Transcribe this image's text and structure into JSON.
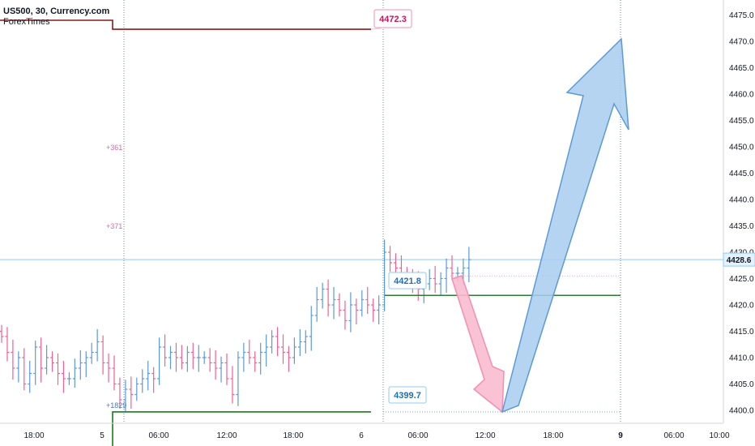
{
  "header": {
    "symbol_line": "US500, 30, Currency.com",
    "broker": "ForexTimes"
  },
  "colors": {
    "up": "#5b9bd5",
    "down": "#f06292",
    "resistance": "#8b1a1a",
    "support": "#1b7a1b",
    "mid_support": "#2e7d32",
    "crosshair": "#90caf9",
    "arrow_up_fill": "#a8ccf0",
    "arrow_up_stroke": "#5b9bd5",
    "arrow_down_fill": "#f8bbd0",
    "arrow_down_stroke": "#f48fb1"
  },
  "chart_data": {
    "type": "ohlc",
    "instrument": "US500",
    "timeframe": "30",
    "ylim": [
      4397,
      4478
    ],
    "y_ticks": [
      "4475.0",
      "4470.0",
      "4465.0",
      "4460.0",
      "4455.0",
      "4450.0",
      "4445.0",
      "4440.0",
      "4435.0",
      "4430.0",
      "4425.0",
      "4420.0",
      "4415.0",
      "4410.0",
      "4405.0",
      "4400.0"
    ],
    "x_ticks": [
      "18:00",
      "5",
      "06:00",
      "12:00",
      "18:00",
      "6",
      "06:00",
      "12:00",
      "18:00",
      "9",
      "06:00",
      "10:00"
    ],
    "current_price": "4428.6",
    "levels": {
      "resistance": "4472.3",
      "support_mid": "4421.8",
      "support_low": "4399.7"
    },
    "annotations": [
      "+361",
      "+371",
      "+1829"
    ],
    "close_series": [
      4414,
      4411,
      4408,
      4410,
      4405,
      4407,
      4412,
      4408,
      4410,
      4409,
      4407,
      4406,
      4406,
      4408,
      4409,
      4410,
      4411,
      4413,
      4409,
      4408,
      4405,
      4402,
      4404,
      4403,
      4405,
      4406,
      4407,
      4406,
      4412,
      4410,
      4411,
      4410,
      4409,
      4411,
      4410,
      4410,
      4410,
      4409,
      4408,
      4409,
      4406,
      4403,
      4410,
      4411,
      4410,
      4409,
      4411,
      4412,
      4414,
      4412,
      4411,
      4410,
      4412,
      4413,
      4414,
      4418,
      4421,
      4423,
      4420,
      4421,
      4419,
      4417,
      4420,
      4419,
      4421,
      4420,
      4419,
      4420,
      4430,
      4428,
      4427,
      4426,
      4425,
      4424,
      4423,
      4424,
      4425,
      4424,
      4425,
      4427,
      4426,
      4426,
      4427,
      4428.6
    ]
  }
}
